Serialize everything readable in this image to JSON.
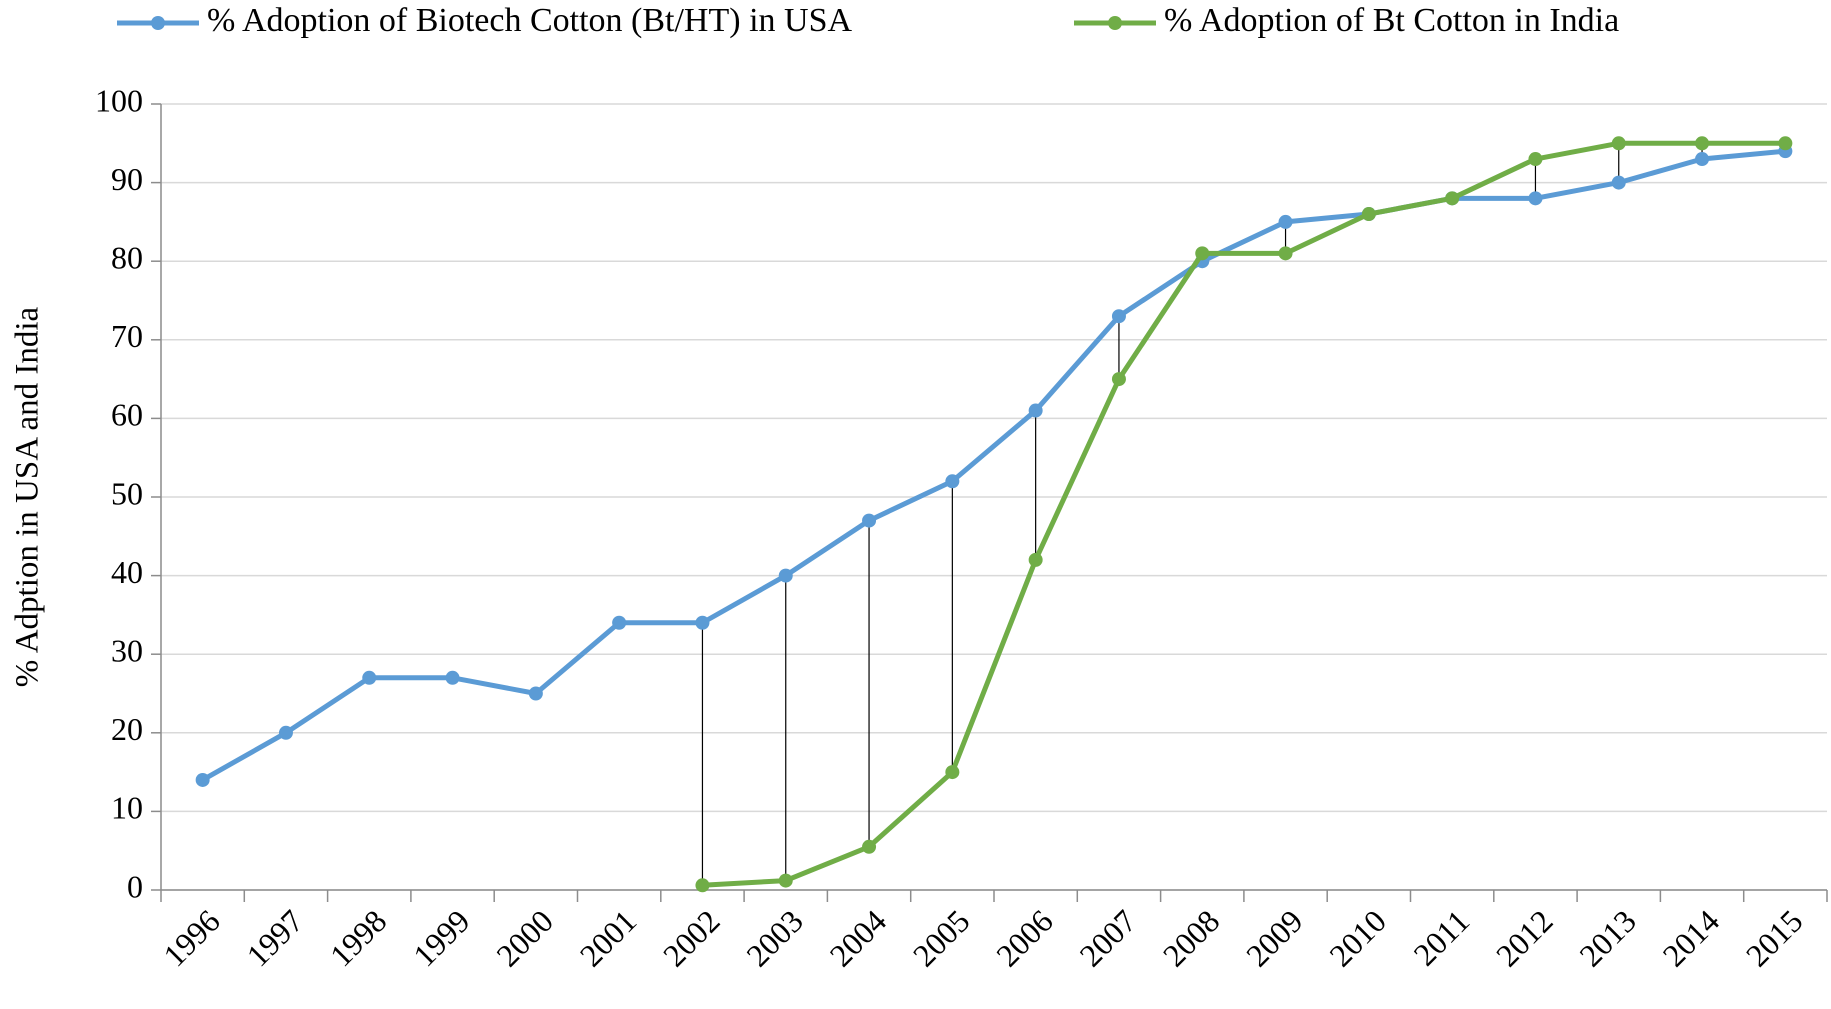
{
  "chart_data": {
    "type": "line",
    "y_label": "% Adption in USA and India",
    "categories": [
      "1996",
      "1997",
      "1998",
      "1999",
      "2000",
      "2001",
      "2002",
      "2003",
      "2004",
      "2005",
      "2006",
      "2007",
      "2008",
      "2009",
      "2010",
      "2011",
      "2012",
      "2013",
      "2014",
      "2015"
    ],
    "series": [
      {
        "name": "% Adoption of Biotech Cotton (Bt/HT) in USA",
        "color": "#5b9bd5",
        "values": [
          14,
          20,
          27,
          27,
          25,
          34,
          34,
          40,
          47,
          52,
          61,
          73,
          80,
          85,
          86,
          88,
          88,
          90,
          93,
          94
        ]
      },
      {
        "name": "% Adoption of Bt Cotton in India",
        "color": "#70ad47",
        "values": [
          null,
          null,
          null,
          null,
          null,
          null,
          0.6,
          1.2,
          5.5,
          15,
          42,
          65,
          81,
          81,
          86,
          88,
          93,
          95,
          95,
          95
        ]
      }
    ],
    "ylim": [
      0,
      100
    ],
    "yticks": [
      0,
      10,
      20,
      30,
      40,
      50,
      60,
      70,
      80,
      90,
      100
    ],
    "grid": true,
    "legend": "top",
    "high_low_lines": true
  }
}
